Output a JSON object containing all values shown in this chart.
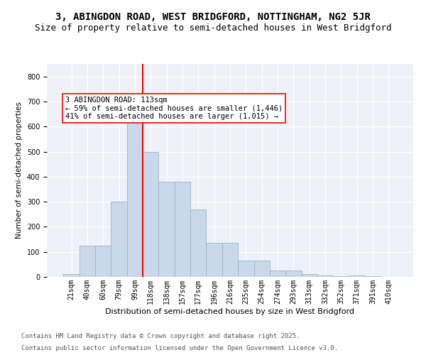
{
  "title": "3, ABINGDON ROAD, WEST BRIDGFORD, NOTTINGHAM, NG2 5JR",
  "subtitle": "Size of property relative to semi-detached houses in West Bridgford",
  "xlabel": "Distribution of semi-detached houses by size in West Bridgford",
  "ylabel": "Number of semi-detached properties",
  "bar_labels": [
    "21sqm",
    "40sqm",
    "60sqm",
    "79sqm",
    "99sqm",
    "118sqm",
    "138sqm",
    "157sqm",
    "177sqm",
    "196sqm",
    "216sqm",
    "235sqm",
    "254sqm",
    "274sqm",
    "293sqm",
    "313sqm",
    "332sqm",
    "352sqm",
    "371sqm",
    "391sqm",
    "410sqm"
  ],
  "bar_values": [
    10,
    125,
    125,
    300,
    635,
    500,
    380,
    380,
    270,
    135,
    135,
    65,
    65,
    25,
    25,
    10,
    5,
    2,
    5,
    2,
    0
  ],
  "bar_color": "#c9d9ea",
  "bar_edge_color": "#9ab4cc",
  "vline_index": 5,
  "vline_color": "red",
  "annotation_text": "3 ABINGDON ROAD: 113sqm\n← 59% of semi-detached houses are smaller (1,446)\n41% of semi-detached houses are larger (1,015) →",
  "annotation_box_color": "white",
  "annotation_box_edge_color": "red",
  "ylim": [
    0,
    850
  ],
  "yticks": [
    0,
    100,
    200,
    300,
    400,
    500,
    600,
    700,
    800
  ],
  "background_color": "#eef2f8",
  "footer_line1": "Contains HM Land Registry data © Crown copyright and database right 2025.",
  "footer_line2": "Contains public sector information licensed under the Open Government Licence v3.0.",
  "title_fontsize": 10,
  "subtitle_fontsize": 9,
  "annotation_fontsize": 7.5,
  "footer_fontsize": 6.5,
  "ylabel_fontsize": 7.5,
  "xlabel_fontsize": 8,
  "tick_fontsize": 7
}
